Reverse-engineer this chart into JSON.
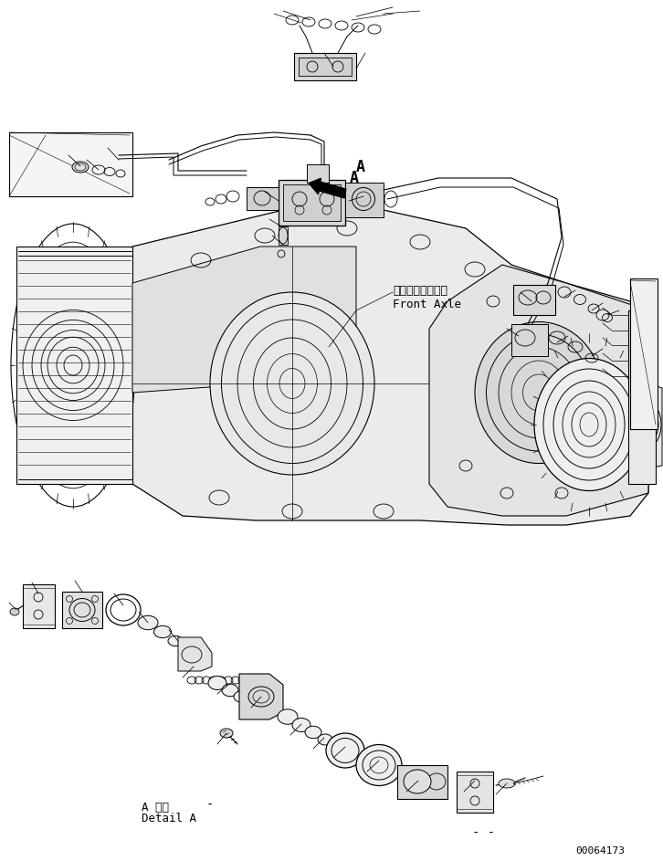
{
  "bg_color": "#ffffff",
  "line_color": "#000000",
  "text_front_axle_jp": "フロントアクスル",
  "text_front_axle_en": "Front Axle",
  "text_detail_jp": "A 詳細",
  "text_detail_en": "Detail A",
  "text_A": "A",
  "text_id": "00064173",
  "fig_width": 7.26,
  "fig_height": 9.43,
  "dpi": 100
}
